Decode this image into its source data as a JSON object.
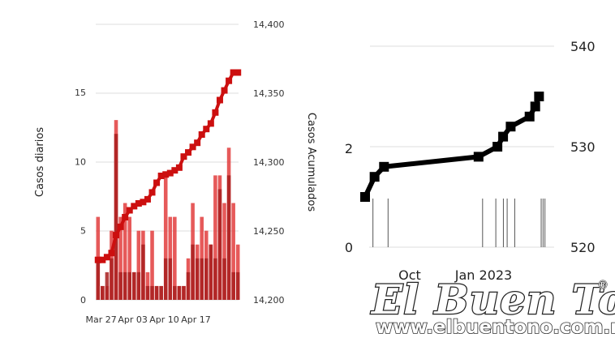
{
  "chart_data": [
    {
      "type": "bar",
      "ylabel_left": "Casos diarios",
      "ylabel_right": "Casos Acumulados",
      "left_ylim": [
        0,
        17
      ],
      "left_yticks": [
        "0",
        "5",
        "10",
        "15"
      ],
      "right_ylim": [
        14200,
        14400
      ],
      "right_yticks": [
        "14,200",
        "14,250",
        "14,300",
        "14,350",
        "14,400"
      ],
      "xtick_labels": [
        "Mar 27",
        "Apr 03",
        "Apr 10",
        "Apr 17"
      ],
      "series": [
        {
          "kind": "bar",
          "color": "#e34848",
          "values": [
            6,
            1,
            1,
            5,
            13,
            6,
            7,
            6,
            2,
            5,
            5,
            2,
            5,
            1,
            1,
            9,
            6,
            6,
            1,
            1,
            3,
            7,
            4,
            6,
            5,
            4,
            9,
            9,
            7,
            11,
            7,
            4
          ]
        },
        {
          "kind": "bar",
          "color": "#a81e1e",
          "values": [
            3,
            1,
            2,
            3,
            12,
            2,
            2,
            2,
            2,
            2,
            4,
            1,
            1,
            1,
            1,
            3,
            3,
            1,
            1,
            1,
            2,
            4,
            3,
            3,
            3,
            4,
            3,
            8,
            3,
            9,
            2,
            2
          ]
        },
        {
          "kind": "line",
          "color": "#cc0f0f",
          "axis": "right",
          "values": [
            14229,
            14229,
            14231,
            14234,
            14247,
            14253,
            14260,
            14265,
            14268,
            14270,
            14271,
            14273,
            14278,
            14285,
            14290,
            14291,
            14292,
            14294,
            14296,
            14304,
            14307,
            14311,
            14314,
            14320,
            14324,
            14328,
            14336,
            14345,
            14352,
            14359,
            14365,
            14365
          ]
        }
      ]
    },
    {
      "type": "line",
      "ylim_left": [
        0,
        3
      ],
      "left_yticks": [
        "0",
        "2"
      ],
      "ylim_right": [
        520,
        541
      ],
      "right_yticks": [
        "520",
        "530",
        "540"
      ],
      "xtick_labels": [
        "Oct",
        "Jan 2023"
      ],
      "series": [
        {
          "kind": "line",
          "color": "#000000",
          "axis": "right",
          "values": [
            525,
            527,
            528,
            529,
            530,
            531,
            532,
            533,
            534,
            535
          ],
          "x": [
            0.0,
            0.05,
            0.1,
            0.6,
            0.7,
            0.73,
            0.77,
            0.87,
            0.9,
            0.92
          ]
        },
        {
          "kind": "rug",
          "color": "#555555",
          "x": [
            0.02,
            0.1,
            0.6,
            0.67,
            0.71,
            0.73,
            0.77,
            0.91,
            0.92,
            0.93
          ]
        }
      ]
    }
  ],
  "watermark": {
    "brand": "El Buen Tono",
    "registered": "®",
    "url": "www.elbuentono.com.mx"
  }
}
